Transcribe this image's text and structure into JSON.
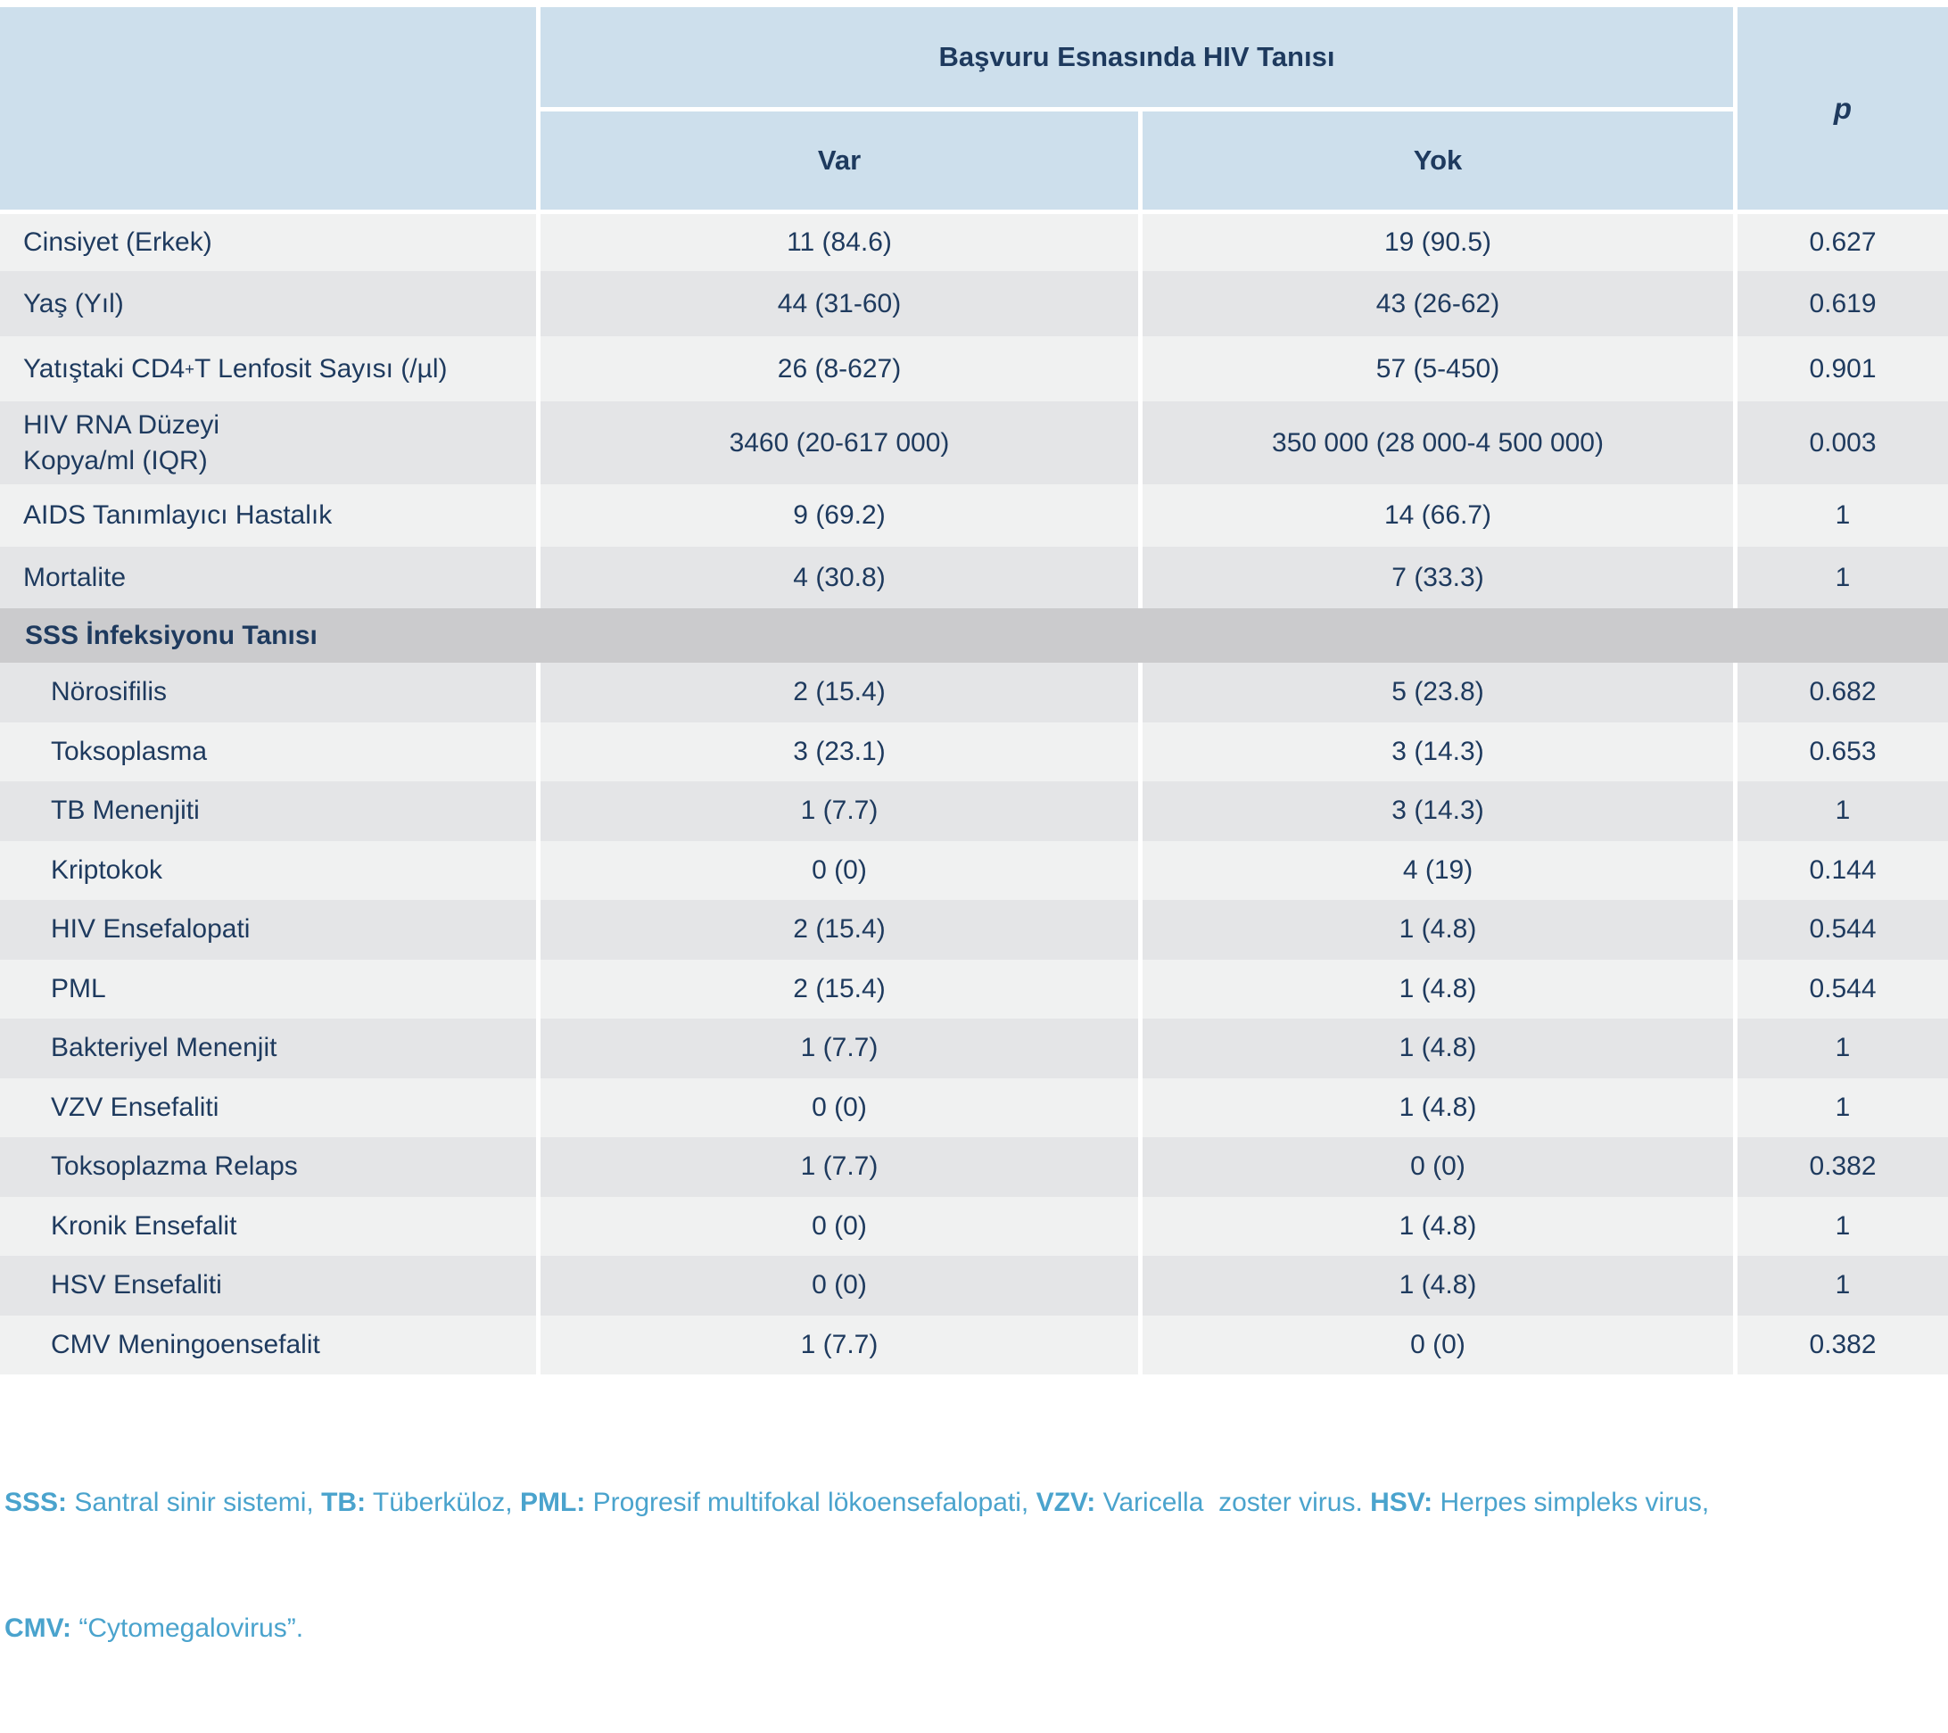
{
  "table": {
    "header": {
      "group": "Başvuru Esnasında HIV Tanısı",
      "col_var": "Var",
      "col_yok": "Yok",
      "p": "p"
    },
    "rows": [
      {
        "label": "Cinsiyet (Erkek)",
        "var": "11 (84.6)",
        "yok": "19 (90.5)",
        "p": "0.627"
      },
      {
        "label": "Yaş (Yıl)",
        "var": "44 (31-60)",
        "yok": "43 (26-62)",
        "p": "0.619"
      },
      {
        "label_pre": "Yatıştaki CD4",
        "label_sup": "+",
        "label_post": " T Lenfosit Sayısı (/µl)",
        "var": "26 (8-627)",
        "yok": "57 (5-450)",
        "p": "0.901"
      },
      {
        "label_line1": "HIV RNA Düzeyi",
        "label_line2": "Kopya/ml (IQR)",
        "var": "3460 (20-617 000)",
        "yok": "350 000 (28 000-4 500 000)",
        "p": "0.003"
      },
      {
        "label": "AIDS Tanımlayıcı Hastalık",
        "var": "9 (69.2)",
        "yok": "14 (66.7)",
        "p": "1"
      },
      {
        "label": "Mortalite",
        "var": "4 (30.8)",
        "yok": "7 (33.3)",
        "p": "1"
      }
    ],
    "section": {
      "label": "SSS İnfeksiyonu Tanısı"
    },
    "sub_rows": [
      {
        "label": "Nörosifilis",
        "var": "2 (15.4)",
        "yok": "5 (23.8)",
        "p": "0.682"
      },
      {
        "label": "Toksoplasma",
        "var": "3 (23.1)",
        "yok": "3 (14.3)",
        "p": "0.653"
      },
      {
        "label": "TB Menenjiti",
        "var": "1 (7.7)",
        "yok": "3 (14.3)",
        "p": "1"
      },
      {
        "label": "Kriptokok",
        "var": "0 (0)",
        "yok": "4 (19)",
        "p": "0.144"
      },
      {
        "label": "HIV Ensefalopati",
        "var": "2 (15.4)",
        "yok": "1 (4.8)",
        "p": "0.544"
      },
      {
        "label": "PML",
        "var": "2 (15.4)",
        "yok": "1 (4.8)",
        "p": "0.544"
      },
      {
        "label": "Bakteriyel Menenjit",
        "var": "1 (7.7)",
        "yok": "1 (4.8)",
        "p": "1"
      },
      {
        "label": "VZV Ensefaliti",
        "var": "0 (0)",
        "yok": "1 (4.8)",
        "p": "1"
      },
      {
        "label": "Toksoplazma Relaps",
        "var": "1 (7.7)",
        "yok": "0 (0)",
        "p": "0.382"
      },
      {
        "label": "Kronik Ensefalit",
        "var": "0 (0)",
        "yok": "1 (4.8)",
        "p": "1"
      },
      {
        "label": "HSV Ensefaliti",
        "var": "0 (0)",
        "yok": "1 (4.8)",
        "p": "1"
      },
      {
        "label": "CMV Meningoensefalit",
        "var": "1 (7.7)",
        "yok": "0 (0)",
        "p": "0.382"
      }
    ]
  },
  "footnote": {
    "line1": {
      "s0": "SSS:",
      "s1": " Santral sinir sistemi, ",
      "s2": "TB:",
      "s3": " Tüberküloz, ",
      "s4": "PML:",
      "s5": " Progresif multifokal lökoensefalopati, ",
      "s6": "VZV:",
      "s7": " Varicella  zoster virus. ",
      "s8": "HSV:",
      "s9": " Herpes simpleks virus,"
    },
    "line2": {
      "s0": "CMV:",
      "s1": " “Cytomegalovirus”."
    }
  },
  "colors": {
    "header_bg": "#cddfec",
    "row_light": "#f0f1f1",
    "row_dark": "#e4e5e7",
    "section_bg": "#cbcbcd",
    "text_navy": "#1e3a5e",
    "footnote_blue": "#4aa3cd"
  }
}
